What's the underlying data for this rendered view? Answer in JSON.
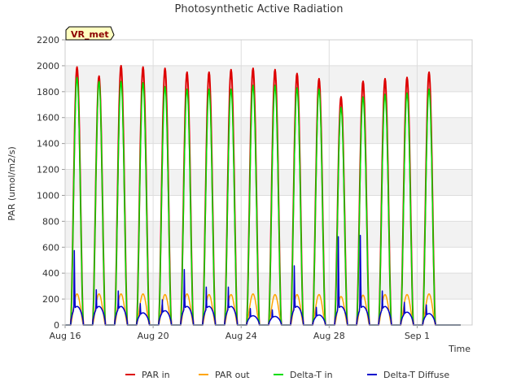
{
  "chart_data": {
    "type": "line",
    "title": "Photosynthetic Active Radiation",
    "xlabel": "Time",
    "ylabel": "PAR (umol/m2/s)",
    "site_badge": "VR_met",
    "ylim": [
      0,
      2200
    ],
    "yticks": [
      "0",
      "200",
      "400",
      "600",
      "800",
      "1000",
      "1200",
      "1400",
      "1600",
      "1800",
      "2000",
      "2200"
    ],
    "xlim_days": [
      0,
      18.5
    ],
    "xticks": [
      {
        "day": 0,
        "label": "Aug 16"
      },
      {
        "day": 4,
        "label": "Aug 20"
      },
      {
        "day": 8,
        "label": "Aug 24"
      },
      {
        "day": 12,
        "label": "Aug 28"
      },
      {
        "day": 16,
        "label": "Sep 1"
      }
    ],
    "grid": true,
    "legend_position": "bottom",
    "days": [
      "Aug 16",
      "Aug 17",
      "Aug 18",
      "Aug 19",
      "Aug 20",
      "Aug 21",
      "Aug 22",
      "Aug 23",
      "Aug 24",
      "Aug 25",
      "Aug 26",
      "Aug 27",
      "Aug 28",
      "Aug 29",
      "Aug 30",
      "Aug 31",
      "Sep 1",
      "Sep 2"
    ],
    "series": [
      {
        "name": "PAR in",
        "color": "#dd0000",
        "daily_peak": [
          1990,
          1920,
          2000,
          1990,
          1980,
          1950,
          1950,
          1970,
          1980,
          1970,
          1940,
          1900,
          1760,
          1880,
          1900,
          1910,
          1950,
          0
        ]
      },
      {
        "name": "PAR out",
        "color": "#ffa500",
        "daily_peak": [
          240,
          240,
          240,
          240,
          235,
          240,
          235,
          235,
          240,
          235,
          235,
          235,
          220,
          230,
          235,
          235,
          240,
          0
        ]
      },
      {
        "name": "Delta-T in",
        "color": "#00dd00",
        "daily_peak": [
          1910,
          1880,
          1880,
          1870,
          1840,
          1820,
          1820,
          1820,
          1850,
          1850,
          1830,
          1820,
          1680,
          1760,
          1780,
          1790,
          1820,
          0
        ]
      },
      {
        "name": "Delta-T Diffuse",
        "color": "#0000cc",
        "daily_peak": [
          590,
          280,
          270,
          170,
          200,
          440,
          300,
          300,
          130,
          120,
          470,
          140,
          700,
          710,
          270,
          180,
          160,
          0
        ]
      }
    ]
  }
}
